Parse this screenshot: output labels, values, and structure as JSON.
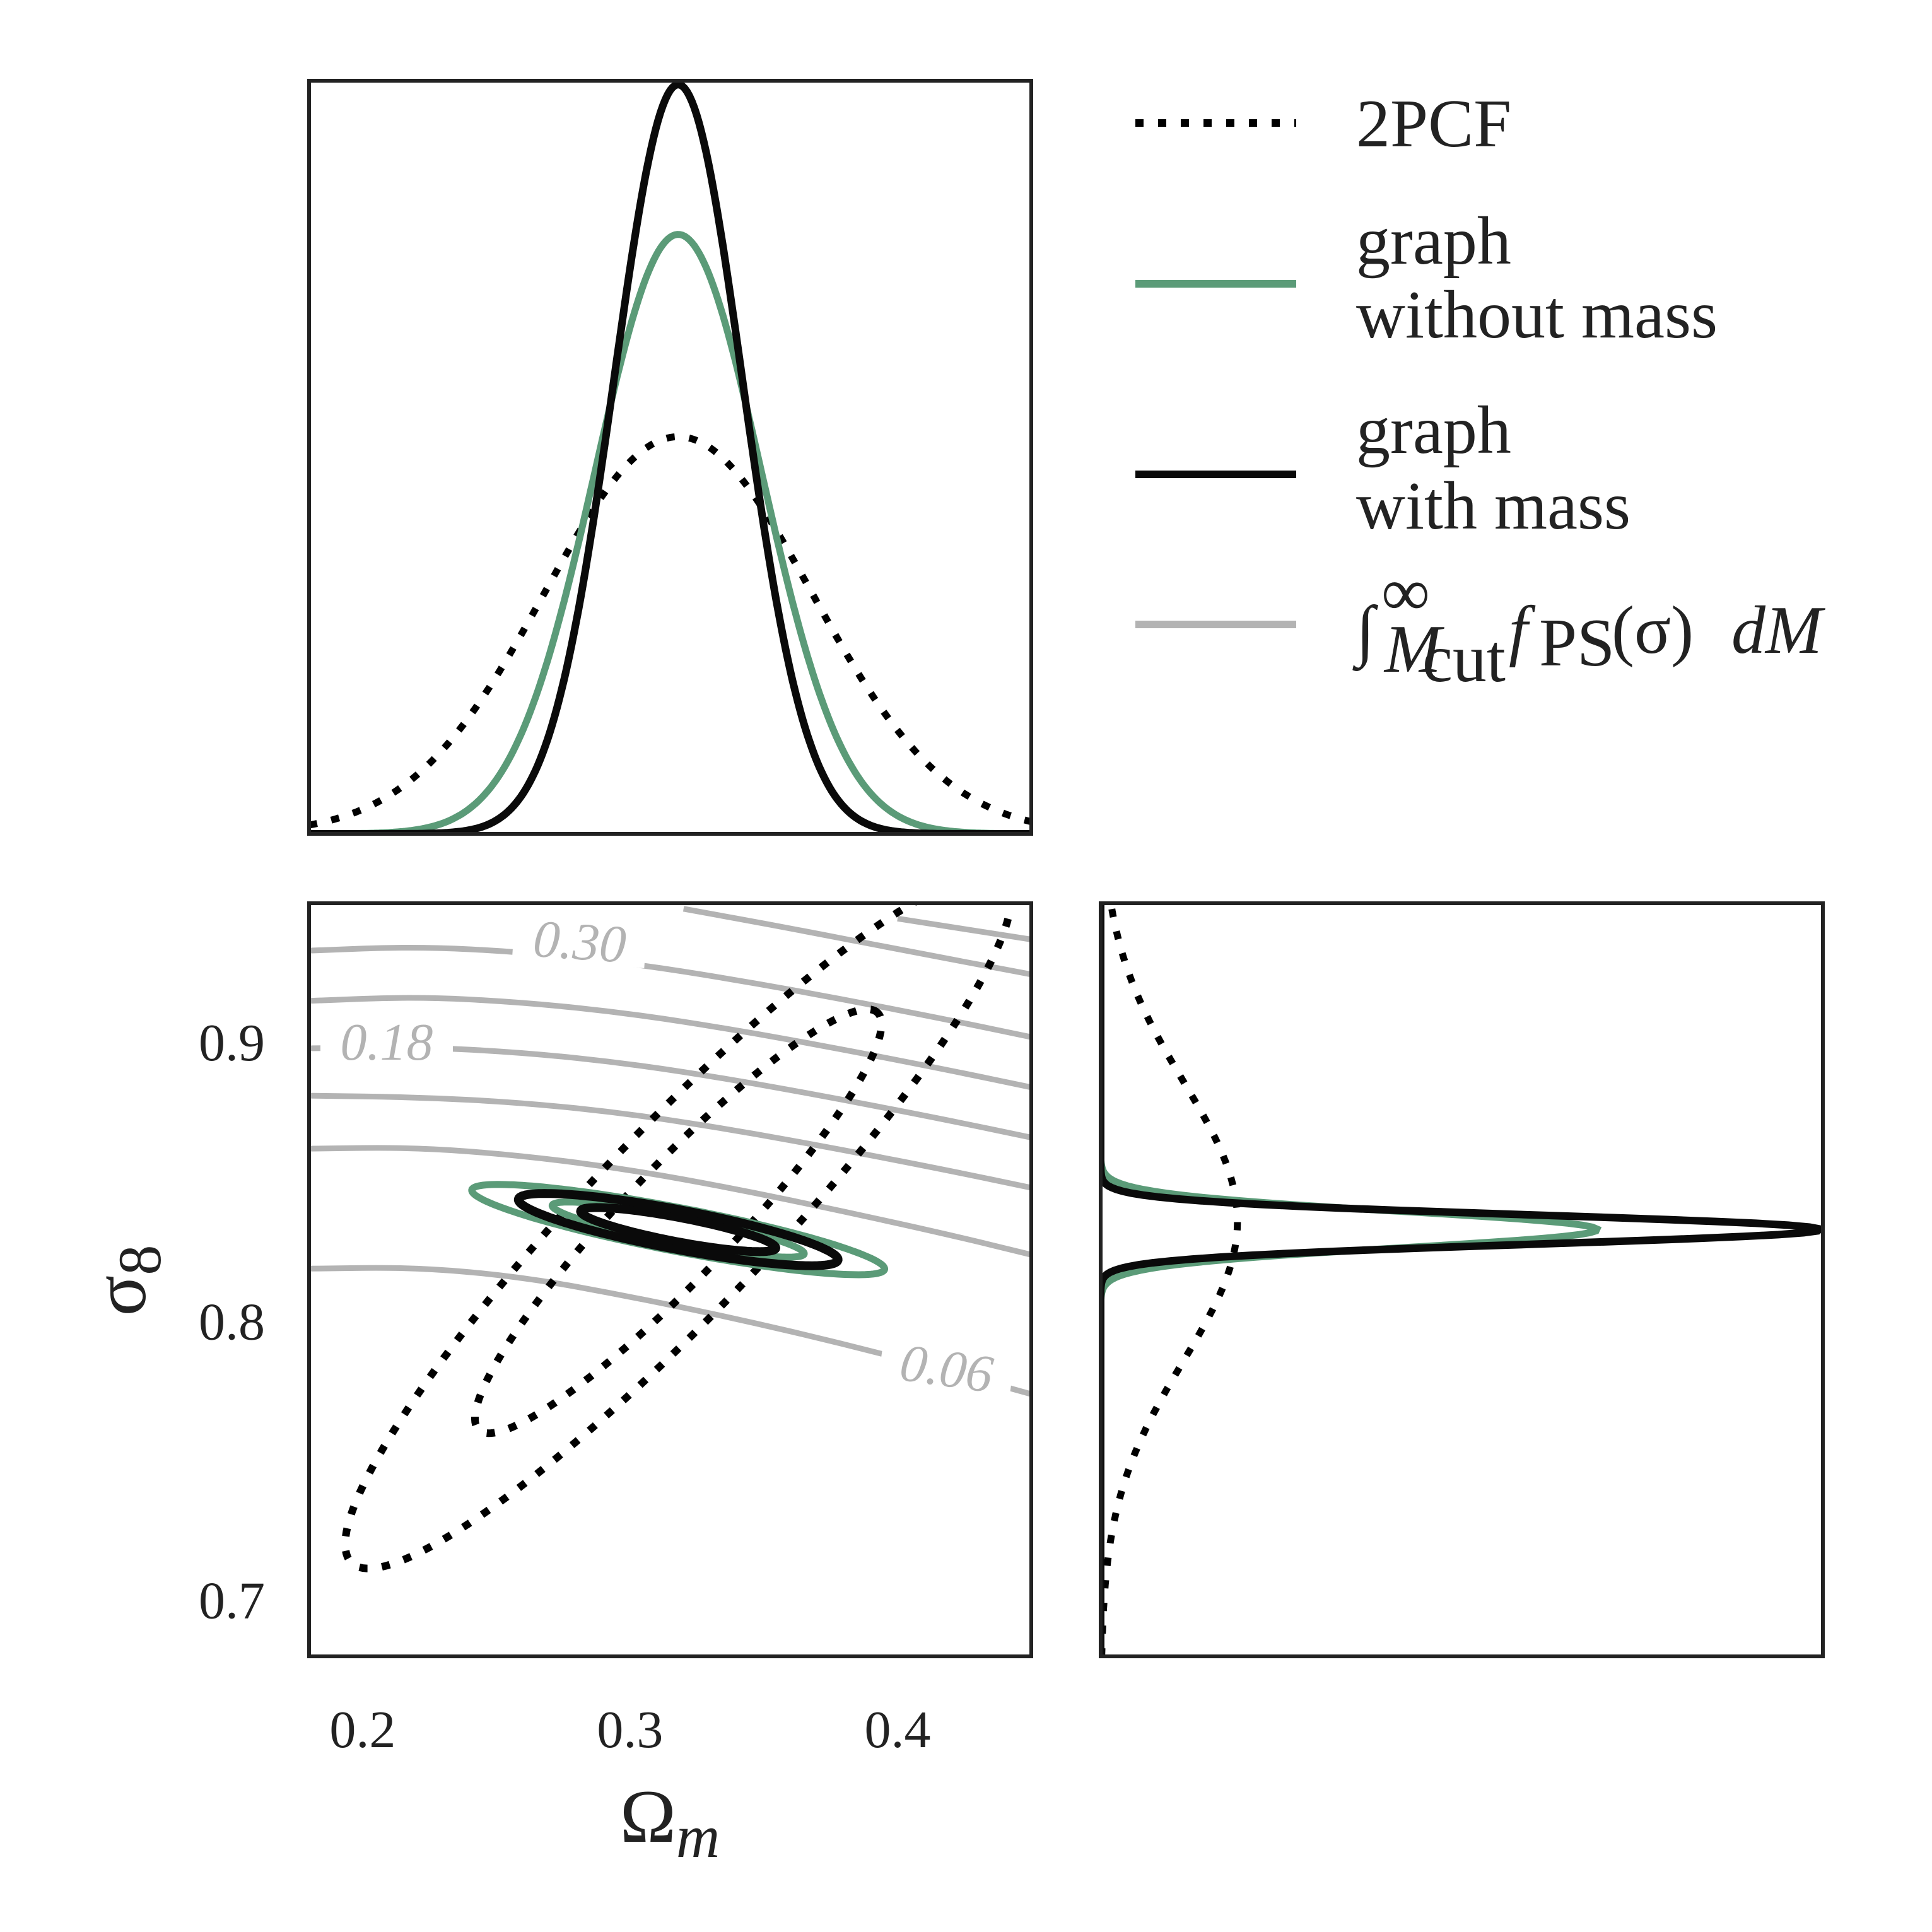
{
  "colors": {
    "pcf": "#000000",
    "graph_without_mass": "#5b9b78",
    "graph_with_mass": "#0a0a0a",
    "ps_contours": "#b3b3b3",
    "frame": "#222222"
  },
  "legend": {
    "items": [
      {
        "key": "pcf",
        "line1": "2PCF",
        "line2": "",
        "style": "dotted"
      },
      {
        "key": "graph_without_mass",
        "line1": "graph",
        "line2": "without mass",
        "style": "solid"
      },
      {
        "key": "graph_with_mass",
        "line1": "graph",
        "line2": "with mass",
        "style": "solid"
      },
      {
        "key": "ps_contours",
        "line1": "∫",
        "line2": "",
        "style": "solid"
      }
    ],
    "ps_formula": {
      "integral": "∫",
      "upper": "∞",
      "lower_M": "M",
      "lower_sub": "cut",
      "f": "f",
      "f_sub": "PS",
      "arg": "(σ)",
      "d": "dM"
    }
  },
  "axes_labels": {
    "x_symbol": "Ω",
    "x_sub": "m",
    "y_symbol": "σ",
    "y_sub": "8"
  },
  "chart_data": {
    "type": "corner",
    "x_param": "Ω_m",
    "y_param": "σ_8",
    "xlim": [
      0.18,
      0.45
    ],
    "ylim": [
      0.68,
      0.95
    ],
    "x_ticks": [
      "0.2",
      "0.3",
      "0.4"
    ],
    "y_ticks": [
      "0.7",
      "0.8",
      "0.9"
    ],
    "grid": false,
    "legend_position": "top-right",
    "series": [
      {
        "key": "pcf",
        "name": "2PCF",
        "mean": [
          0.318,
          0.836
        ],
        "sigma": [
          0.05,
          0.05
        ],
        "corr": 0.93
      },
      {
        "key": "graph_without_mass",
        "name": "graph without mass",
        "mean": [
          0.318,
          0.833
        ],
        "sigma": [
          0.031,
          0.0065
        ],
        "corr": -0.87
      },
      {
        "key": "graph_with_mass",
        "name": "graph with mass",
        "mean": [
          0.318,
          0.833
        ],
        "sigma": [
          0.024,
          0.0052
        ],
        "corr": -0.83
      }
    ],
    "marginal_peaks_omega_m": {
      "pcf": 0.53,
      "graph_without_mass": 0.8,
      "graph_with_mass": 1.0
    },
    "marginal_peaks_sigma8": {
      "pcf": 0.19,
      "graph_without_mass": 0.69,
      "graph_with_mass": 1.0
    },
    "ps_contour_levels": [
      "0.06",
      "0.18",
      "0.30"
    ],
    "ps_contours": [
      [
        [
          0.18,
          0.819
        ],
        [
          0.22,
          0.8195
        ],
        [
          0.26,
          0.816
        ],
        [
          0.3,
          0.809
        ],
        [
          0.34,
          0.801
        ],
        [
          0.38,
          0.792
        ],
        [
          0.42,
          0.782
        ],
        [
          0.45,
          0.774
        ]
      ],
      [
        [
          0.18,
          0.862
        ],
        [
          0.22,
          0.8625
        ],
        [
          0.26,
          0.8595
        ],
        [
          0.3,
          0.8545
        ],
        [
          0.34,
          0.8475
        ],
        [
          0.38,
          0.8395
        ],
        [
          0.42,
          0.831
        ],
        [
          0.45,
          0.824
        ]
      ],
      [
        [
          0.18,
          0.881
        ],
        [
          0.22,
          0.8805
        ],
        [
          0.26,
          0.8785
        ],
        [
          0.3,
          0.8745
        ],
        [
          0.34,
          0.8685
        ],
        [
          0.38,
          0.8615
        ],
        [
          0.42,
          0.854
        ],
        [
          0.45,
          0.848
        ]
      ],
      [
        [
          0.18,
          0.898
        ],
        [
          0.22,
          0.8985
        ],
        [
          0.26,
          0.8965
        ],
        [
          0.3,
          0.8925
        ],
        [
          0.34,
          0.8865
        ],
        [
          0.38,
          0.8795
        ],
        [
          0.42,
          0.872
        ],
        [
          0.45,
          0.866
        ]
      ],
      [
        [
          0.18,
          0.915
        ],
        [
          0.22,
          0.9165
        ],
        [
          0.26,
          0.9145
        ],
        [
          0.3,
          0.9105
        ],
        [
          0.34,
          0.9045
        ],
        [
          0.38,
          0.8975
        ],
        [
          0.42,
          0.89
        ],
        [
          0.45,
          0.884
        ]
      ],
      [
        [
          0.18,
          0.933
        ],
        [
          0.22,
          0.9345
        ],
        [
          0.26,
          0.9325
        ],
        [
          0.3,
          0.9285
        ],
        [
          0.34,
          0.9225
        ],
        [
          0.38,
          0.9155
        ],
        [
          0.42,
          0.908
        ],
        [
          0.45,
          0.902
        ]
      ],
      [
        [
          0.32,
          0.948
        ],
        [
          0.36,
          0.941
        ],
        [
          0.4,
          0.9335
        ],
        [
          0.45,
          0.9245
        ]
      ],
      [
        [
          0.4,
          0.9445
        ],
        [
          0.45,
          0.937
        ]
      ]
    ],
    "ps_label_positions": [
      {
        "text": "0.06",
        "at": [
          0.418,
          0.781
        ],
        "angle": 8
      },
      {
        "text": "0.18",
        "at": [
          0.209,
          0.898
        ],
        "angle": 0
      },
      {
        "text": "0.30",
        "at": [
          0.281,
          0.934
        ],
        "angle": 4
      }
    ]
  }
}
